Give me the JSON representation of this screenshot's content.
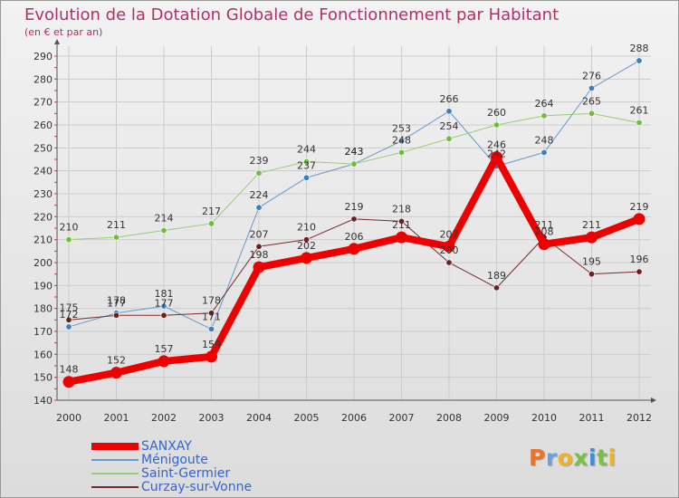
{
  "header": {
    "title": "Evolution de la Dotation Globale de Fonctionnement par Habitant",
    "subtitle": "(en € et par an)"
  },
  "logo": {
    "letters": [
      "P",
      "r",
      "o",
      "x",
      "i",
      "t",
      "i"
    ],
    "colors": [
      "#e8742b",
      "#6aa1d8",
      "#f2b21c",
      "#7ac142",
      "#3d8fd6",
      "#7ac142",
      "#f2b21c"
    ]
  },
  "colors": {
    "grid": "#cccccc",
    "axis": "#555555",
    "tick_text": "#333333",
    "title": "#b0306a",
    "legend_text": "#3366cc"
  },
  "chart_data": {
    "type": "line",
    "title": "Evolution de la Dotation Globale de Fonctionnement par Habitant",
    "subtitle": "(en € et par an)",
    "xlabel": "",
    "ylabel": "",
    "categories": [
      "2000",
      "2001",
      "2002",
      "2003",
      "2004",
      "2005",
      "2006",
      "2007",
      "2008",
      "2009",
      "2010",
      "2011",
      "2012"
    ],
    "ylim": [
      140,
      290
    ],
    "yticks": [
      140,
      150,
      160,
      170,
      180,
      190,
      200,
      210,
      220,
      230,
      240,
      250,
      260,
      270,
      280,
      290
    ],
    "grid": true,
    "legend_position": "bottom-left",
    "series": [
      {
        "name": "Ménigoute",
        "color": "#6699cc",
        "marker": "#3a7fc0",
        "width": 1,
        "values": [
          172,
          178,
          181,
          171,
          224,
          237,
          243,
          253,
          266,
          242,
          248,
          276,
          288
        ],
        "labels": [
          "172",
          "178",
          "181",
          "171",
          "224",
          "237",
          "243",
          "253",
          "266",
          "242",
          "248",
          "276",
          "288"
        ]
      },
      {
        "name": "Saint-Germier",
        "color": "#99cc77",
        "marker": "#6cbf3a",
        "width": 1,
        "values": [
          210,
          211,
          214,
          217,
          239,
          244,
          243,
          248,
          254,
          260,
          264,
          265,
          261
        ],
        "labels": [
          "210",
          "211",
          "214",
          "217",
          "239",
          "244",
          "243",
          "248",
          "254",
          "260",
          "264",
          "265",
          "261"
        ]
      },
      {
        "name": "Curzay-sur-Vonne",
        "color": "#7a2a2a",
        "marker": "#6b1f1f",
        "width": 1,
        "values": [
          175,
          177,
          177,
          178,
          207,
          210,
          219,
          218,
          200,
          189,
          211,
          195,
          196
        ],
        "labels": [
          "175",
          "177",
          "177",
          "178",
          "207",
          "210",
          "219",
          "218",
          "200",
          "189",
          "211",
          "195",
          "196"
        ]
      },
      {
        "name": "SANXAY",
        "color": "#ee0000",
        "marker": "#ee0000",
        "width": 8,
        "values": [
          148,
          152,
          157,
          159,
          198,
          202,
          206,
          211,
          207,
          246,
          208,
          211,
          219
        ],
        "labels": [
          "148",
          "152",
          "157",
          "159",
          "198",
          "202",
          "206",
          "211",
          "207",
          "246",
          "208",
          "211",
          "219"
        ]
      }
    ]
  },
  "legend": {
    "items": [
      {
        "name": "SANXAY",
        "color": "#ee0000",
        "thickness": 8
      },
      {
        "name": "Ménigoute",
        "color": "#6699cc",
        "thickness": 2
      },
      {
        "name": "Saint-Germier",
        "color": "#99cc77",
        "thickness": 2
      },
      {
        "name": "Curzay-sur-Vonne",
        "color": "#7a2a2a",
        "thickness": 2
      }
    ]
  }
}
